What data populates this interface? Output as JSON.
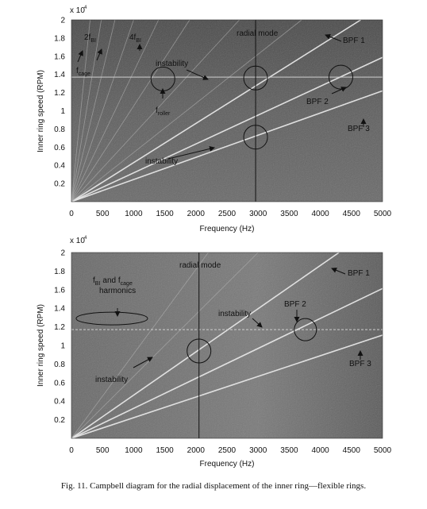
{
  "figure": {
    "caption": "Fig. 11.  Campbell diagram for the radial displacement of the inner ring—flexible rings."
  },
  "chart_data": [
    {
      "type": "heatmap",
      "xlabel": "Frequency (Hz)",
      "ylabel": "Inner ring speed (RPM)",
      "y_multiplier": "x 10",
      "y_exponent": "4",
      "xlim": [
        0,
        5000
      ],
      "ylim": [
        0,
        2
      ],
      "xticks": [
        "0",
        "500",
        "1000",
        "1500",
        "2000",
        "2500",
        "3000",
        "3500",
        "4000",
        "4500",
        "5000"
      ],
      "yticks": [
        "0.2",
        "0.4",
        "0.6",
        "0.8",
        "1",
        "1.2",
        "1.4",
        "1.6",
        "1.8",
        "2"
      ],
      "background": "#6e6e6e",
      "order_lines": [
        {
          "name": "BPF 1",
          "x_at_top": 4650
        },
        {
          "name": "BPF 2",
          "x_at_top": 6300
        },
        {
          "name": "BPF 3",
          "x_at_top": 8200
        },
        {
          "name": "harm1",
          "x_at_top": 3700
        },
        {
          "name": "harm2",
          "x_at_top": 2700
        },
        {
          "name": "harm3",
          "x_at_top": 1900
        },
        {
          "name": "harm4",
          "x_at_top": 1400
        },
        {
          "name": "harm5",
          "x_at_top": 1000
        },
        {
          "name": "harm6",
          "x_at_top": 700
        },
        {
          "name": "harm7",
          "x_at_top": 480
        },
        {
          "name": "harm8",
          "x_at_top": 300
        }
      ],
      "radial_mode_x": 2960,
      "instability_y": 1.37,
      "annotations": [
        {
          "text": "radial mode",
          "x": 2900,
          "y": 1.92
        },
        {
          "text": "BPF 1",
          "x": 4450,
          "y": 1.75
        },
        {
          "text": "BPF 2",
          "x": 3800,
          "y": 1.16
        },
        {
          "text": "BPF 3",
          "x": 4450,
          "y": 0.78
        },
        {
          "text": "instability",
          "x": 1750,
          "y": 1.5
        },
        {
          "text": "instability",
          "x": 1050,
          "y": 0.38
        }
      ],
      "sub_labels": {
        "cage_base": "f",
        "cage_sub": "cage",
        "twofbi_base": "2f",
        "twofbi_sub": "BI",
        "fourfbi_base": "4f",
        "fourfbi_sub": "BI",
        "roller_base": "f",
        "roller_sub": "roller"
      },
      "circles": [
        {
          "x": 1470,
          "y": 1.35
        },
        {
          "x": 2960,
          "y": 1.36
        },
        {
          "x": 4330,
          "y": 1.37
        },
        {
          "x": 2960,
          "y": 0.71
        }
      ]
    },
    {
      "type": "heatmap",
      "xlabel": "Frequency (Hz)",
      "ylabel": "Inner ring speed (RPM)",
      "y_multiplier": "x 10",
      "y_exponent": "4",
      "xlim": [
        0,
        5000
      ],
      "ylim": [
        0,
        2
      ],
      "xticks": [
        "0",
        "500",
        "1000",
        "1500",
        "2000",
        "2500",
        "3000",
        "3500",
        "4000",
        "4500",
        "5000"
      ],
      "yticks": [
        "0.2",
        "0.4",
        "0.6",
        "0.8",
        "1",
        "1.2",
        "1.4",
        "1.6",
        "1.8",
        "2"
      ],
      "background": "#747474",
      "order_lines": [
        {
          "name": "BPF 1",
          "x_at_top": 4300
        },
        {
          "name": "BPF 2",
          "x_at_top": 6200
        },
        {
          "name": "BPF 3",
          "x_at_top": 9000
        },
        {
          "name": "harm1",
          "x_at_top": 3000
        },
        {
          "name": "harm2",
          "x_at_top": 2200
        }
      ],
      "radial_mode_x": 2050,
      "instability_y": 1.17,
      "annotations": [
        {
          "text": "radial mode",
          "x": 1900,
          "y": 1.9
        },
        {
          "text": "BPF 1",
          "x": 4400,
          "y": 1.74
        },
        {
          "text": "BPF 2",
          "x": 3600,
          "y": 1.26
        },
        {
          "text": "BPF 3",
          "x": 4400,
          "y": 0.62
        },
        {
          "text": "instability",
          "x": 2900,
          "y": 1.2
        },
        {
          "text": "instability",
          "x": 500,
          "y": 0.63
        },
        {
          "text": "harmonics",
          "x": 500,
          "y": 1.39
        }
      ],
      "sub_labels": {
        "fbi_base": "f",
        "fbi_sub": "BI",
        "and_text": "and f",
        "cage_sub": "cage"
      },
      "ellipse": {
        "x": 650,
        "y": 1.29
      },
      "circles": [
        {
          "x": 2050,
          "y": 0.94
        },
        {
          "x": 3760,
          "y": 1.17
        }
      ]
    }
  ]
}
